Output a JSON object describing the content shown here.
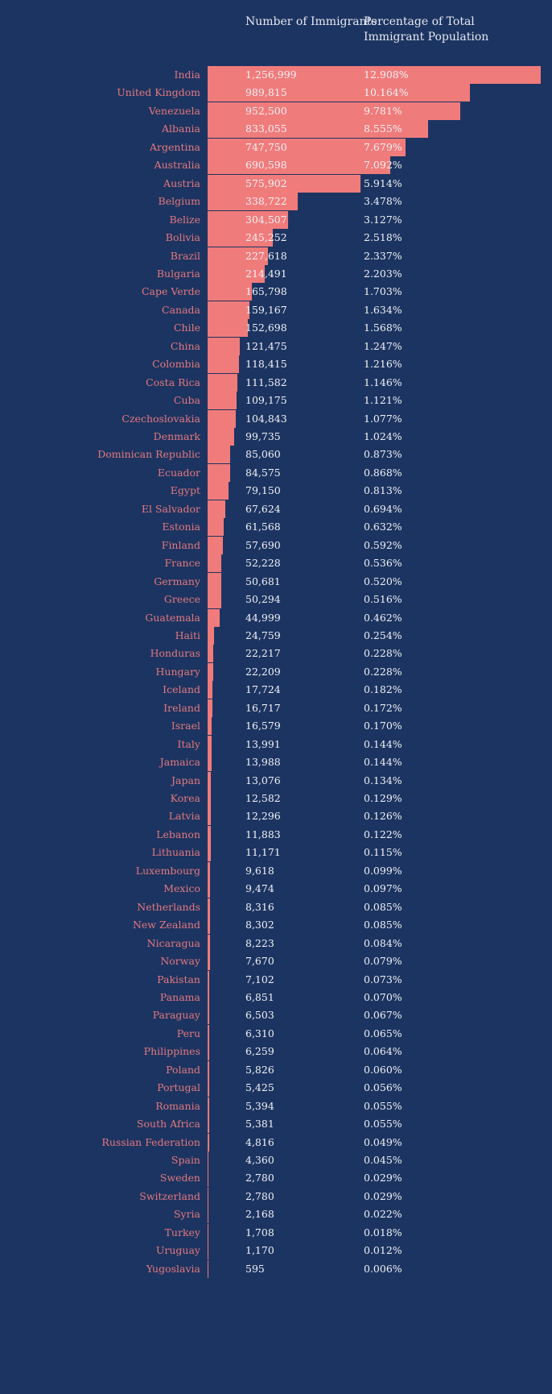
{
  "chart_data": {
    "type": "bar",
    "orientation": "horizontal",
    "column_headers": {
      "number": "Number of Immigrants",
      "percent": "Percentage of Total Immigrant Population"
    },
    "colors": {
      "background": "#1c3461",
      "bar": "#f07b7b",
      "label": "#e4787e",
      "text": "#f2f2f6"
    },
    "rows": [
      {
        "country": "India",
        "value": 1256999,
        "value_label": "1,256,999",
        "pct": "12.908%"
      },
      {
        "country": "United Kingdom",
        "value": 989815,
        "value_label": "989,815",
        "pct": "10.164%"
      },
      {
        "country": "Venezuela",
        "value": 952500,
        "value_label": "952,500",
        "pct": "9.781%"
      },
      {
        "country": "Albania",
        "value": 833055,
        "value_label": "833,055",
        "pct": "8.555%"
      },
      {
        "country": "Argentina",
        "value": 747750,
        "value_label": "747,750",
        "pct": "7.679%"
      },
      {
        "country": "Australia",
        "value": 690598,
        "value_label": "690,598",
        "pct": "7.092%"
      },
      {
        "country": "Austria",
        "value": 575902,
        "value_label": "575,902",
        "pct": "5.914%"
      },
      {
        "country": "Belgium",
        "value": 338722,
        "value_label": "338,722",
        "pct": "3.478%"
      },
      {
        "country": "Belize",
        "value": 304507,
        "value_label": "304,507",
        "pct": "3.127%"
      },
      {
        "country": "Bolivia",
        "value": 245252,
        "value_label": "245,252",
        "pct": "2.518%"
      },
      {
        "country": "Brazil",
        "value": 227618,
        "value_label": "227,618",
        "pct": "2.337%"
      },
      {
        "country": "Bulgaria",
        "value": 214491,
        "value_label": "214,491",
        "pct": "2.203%"
      },
      {
        "country": "Cape Verde",
        "value": 165798,
        "value_label": "165,798",
        "pct": "1.703%"
      },
      {
        "country": "Canada",
        "value": 159167,
        "value_label": "159,167",
        "pct": "1.634%"
      },
      {
        "country": "Chile",
        "value": 152698,
        "value_label": "152,698",
        "pct": "1.568%"
      },
      {
        "country": "China",
        "value": 121475,
        "value_label": "121,475",
        "pct": "1.247%"
      },
      {
        "country": "Colombia",
        "value": 118415,
        "value_label": "118,415",
        "pct": "1.216%"
      },
      {
        "country": "Costa Rica",
        "value": 111582,
        "value_label": "111,582",
        "pct": "1.146%"
      },
      {
        "country": "Cuba",
        "value": 109175,
        "value_label": "109,175",
        "pct": "1.121%"
      },
      {
        "country": "Czechoslovakia",
        "value": 104843,
        "value_label": "104,843",
        "pct": "1.077%"
      },
      {
        "country": "Denmark",
        "value": 99735,
        "value_label": "99,735",
        "pct": "1.024%"
      },
      {
        "country": "Dominican Republic",
        "value": 85060,
        "value_label": "85,060",
        "pct": "0.873%"
      },
      {
        "country": "Ecuador",
        "value": 84575,
        "value_label": "84,575",
        "pct": "0.868%"
      },
      {
        "country": "Egypt",
        "value": 79150,
        "value_label": "79,150",
        "pct": "0.813%"
      },
      {
        "country": "El Salvador",
        "value": 67624,
        "value_label": "67,624",
        "pct": "0.694%"
      },
      {
        "country": "Estonia",
        "value": 61568,
        "value_label": "61,568",
        "pct": "0.632%"
      },
      {
        "country": "Finland",
        "value": 57690,
        "value_label": "57,690",
        "pct": "0.592%"
      },
      {
        "country": "France",
        "value": 52228,
        "value_label": "52,228",
        "pct": "0.536%"
      },
      {
        "country": "Germany",
        "value": 50681,
        "value_label": "50,681",
        "pct": "0.520%"
      },
      {
        "country": "Greece",
        "value": 50294,
        "value_label": "50,294",
        "pct": "0.516%"
      },
      {
        "country": "Guatemala",
        "value": 44999,
        "value_label": "44,999",
        "pct": "0.462%"
      },
      {
        "country": "Haiti",
        "value": 24759,
        "value_label": "24,759",
        "pct": "0.254%"
      },
      {
        "country": "Honduras",
        "value": 22217,
        "value_label": "22,217",
        "pct": "0.228%"
      },
      {
        "country": "Hungary",
        "value": 22209,
        "value_label": "22,209",
        "pct": "0.228%"
      },
      {
        "country": "Iceland",
        "value": 17724,
        "value_label": "17,724",
        "pct": "0.182%"
      },
      {
        "country": "Ireland",
        "value": 16717,
        "value_label": "16,717",
        "pct": "0.172%"
      },
      {
        "country": "Israel",
        "value": 16579,
        "value_label": "16,579",
        "pct": "0.170%"
      },
      {
        "country": "Italy",
        "value": 13991,
        "value_label": "13,991",
        "pct": "0.144%"
      },
      {
        "country": "Jamaica",
        "value": 13988,
        "value_label": "13,988",
        "pct": "0.144%"
      },
      {
        "country": "Japan",
        "value": 13076,
        "value_label": "13,076",
        "pct": "0.134%"
      },
      {
        "country": "Korea",
        "value": 12582,
        "value_label": "12,582",
        "pct": "0.129%"
      },
      {
        "country": "Latvia",
        "value": 12296,
        "value_label": "12,296",
        "pct": "0.126%"
      },
      {
        "country": "Lebanon",
        "value": 11883,
        "value_label": "11,883",
        "pct": "0.122%"
      },
      {
        "country": "Lithuania",
        "value": 11171,
        "value_label": "11,171",
        "pct": "0.115%"
      },
      {
        "country": "Luxembourg",
        "value": 9618,
        "value_label": "9,618",
        "pct": "0.099%"
      },
      {
        "country": "Mexico",
        "value": 9474,
        "value_label": "9,474",
        "pct": "0.097%"
      },
      {
        "country": "Netherlands",
        "value": 8316,
        "value_label": "8,316",
        "pct": "0.085%"
      },
      {
        "country": "New Zealand",
        "value": 8302,
        "value_label": "8,302",
        "pct": "0.085%"
      },
      {
        "country": "Nicaragua",
        "value": 8223,
        "value_label": "8,223",
        "pct": "0.084%"
      },
      {
        "country": "Norway",
        "value": 7670,
        "value_label": "7,670",
        "pct": "0.079%"
      },
      {
        "country": "Pakistan",
        "value": 7102,
        "value_label": "7,102",
        "pct": "0.073%"
      },
      {
        "country": "Panama",
        "value": 6851,
        "value_label": "6,851",
        "pct": "0.070%"
      },
      {
        "country": "Paraguay",
        "value": 6503,
        "value_label": "6,503",
        "pct": "0.067%"
      },
      {
        "country": "Peru",
        "value": 6310,
        "value_label": "6,310",
        "pct": "0.065%"
      },
      {
        "country": "Philippines",
        "value": 6259,
        "value_label": "6,259",
        "pct": "0.064%"
      },
      {
        "country": "Poland",
        "value": 5826,
        "value_label": "5,826",
        "pct": "0.060%"
      },
      {
        "country": "Portugal",
        "value": 5425,
        "value_label": "5,425",
        "pct": "0.056%"
      },
      {
        "country": "Romania",
        "value": 5394,
        "value_label": "5,394",
        "pct": "0.055%"
      },
      {
        "country": "South Africa",
        "value": 5381,
        "value_label": "5,381",
        "pct": "0.055%"
      },
      {
        "country": "Russian Federation",
        "value": 4816,
        "value_label": "4,816",
        "pct": "0.049%"
      },
      {
        "country": "Spain",
        "value": 4360,
        "value_label": "4,360",
        "pct": "0.045%"
      },
      {
        "country": "Sweden",
        "value": 2780,
        "value_label": "2,780",
        "pct": "0.029%"
      },
      {
        "country": "Switzerland",
        "value": 2780,
        "value_label": "2,780",
        "pct": "0.029%"
      },
      {
        "country": "Syria",
        "value": 2168,
        "value_label": "2,168",
        "pct": "0.022%"
      },
      {
        "country": "Turkey",
        "value": 1708,
        "value_label": "1,708",
        "pct": "0.018%"
      },
      {
        "country": "Uruguay",
        "value": 1170,
        "value_label": "1,170",
        "pct": "0.012%"
      },
      {
        "country": "Yugoslavia",
        "value": 595,
        "value_label": "595",
        "pct": "0.006%"
      }
    ]
  }
}
